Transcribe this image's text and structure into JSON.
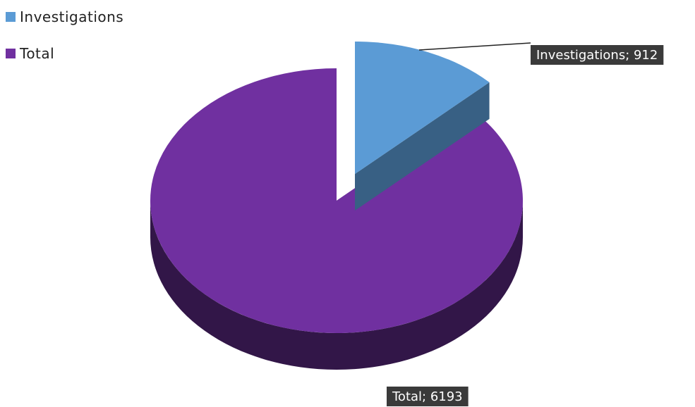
{
  "chart_data": {
    "type": "pie",
    "style": "3d-exploded",
    "categories": [
      "Investigations",
      "Total"
    ],
    "values": [
      912,
      6193
    ],
    "data_labels": [
      "Investigations; 912",
      "Total; 6193"
    ],
    "colors": {
      "Investigations": "#5b9bd5",
      "Total": "#7030a0"
    },
    "legend_position": "top-left"
  }
}
